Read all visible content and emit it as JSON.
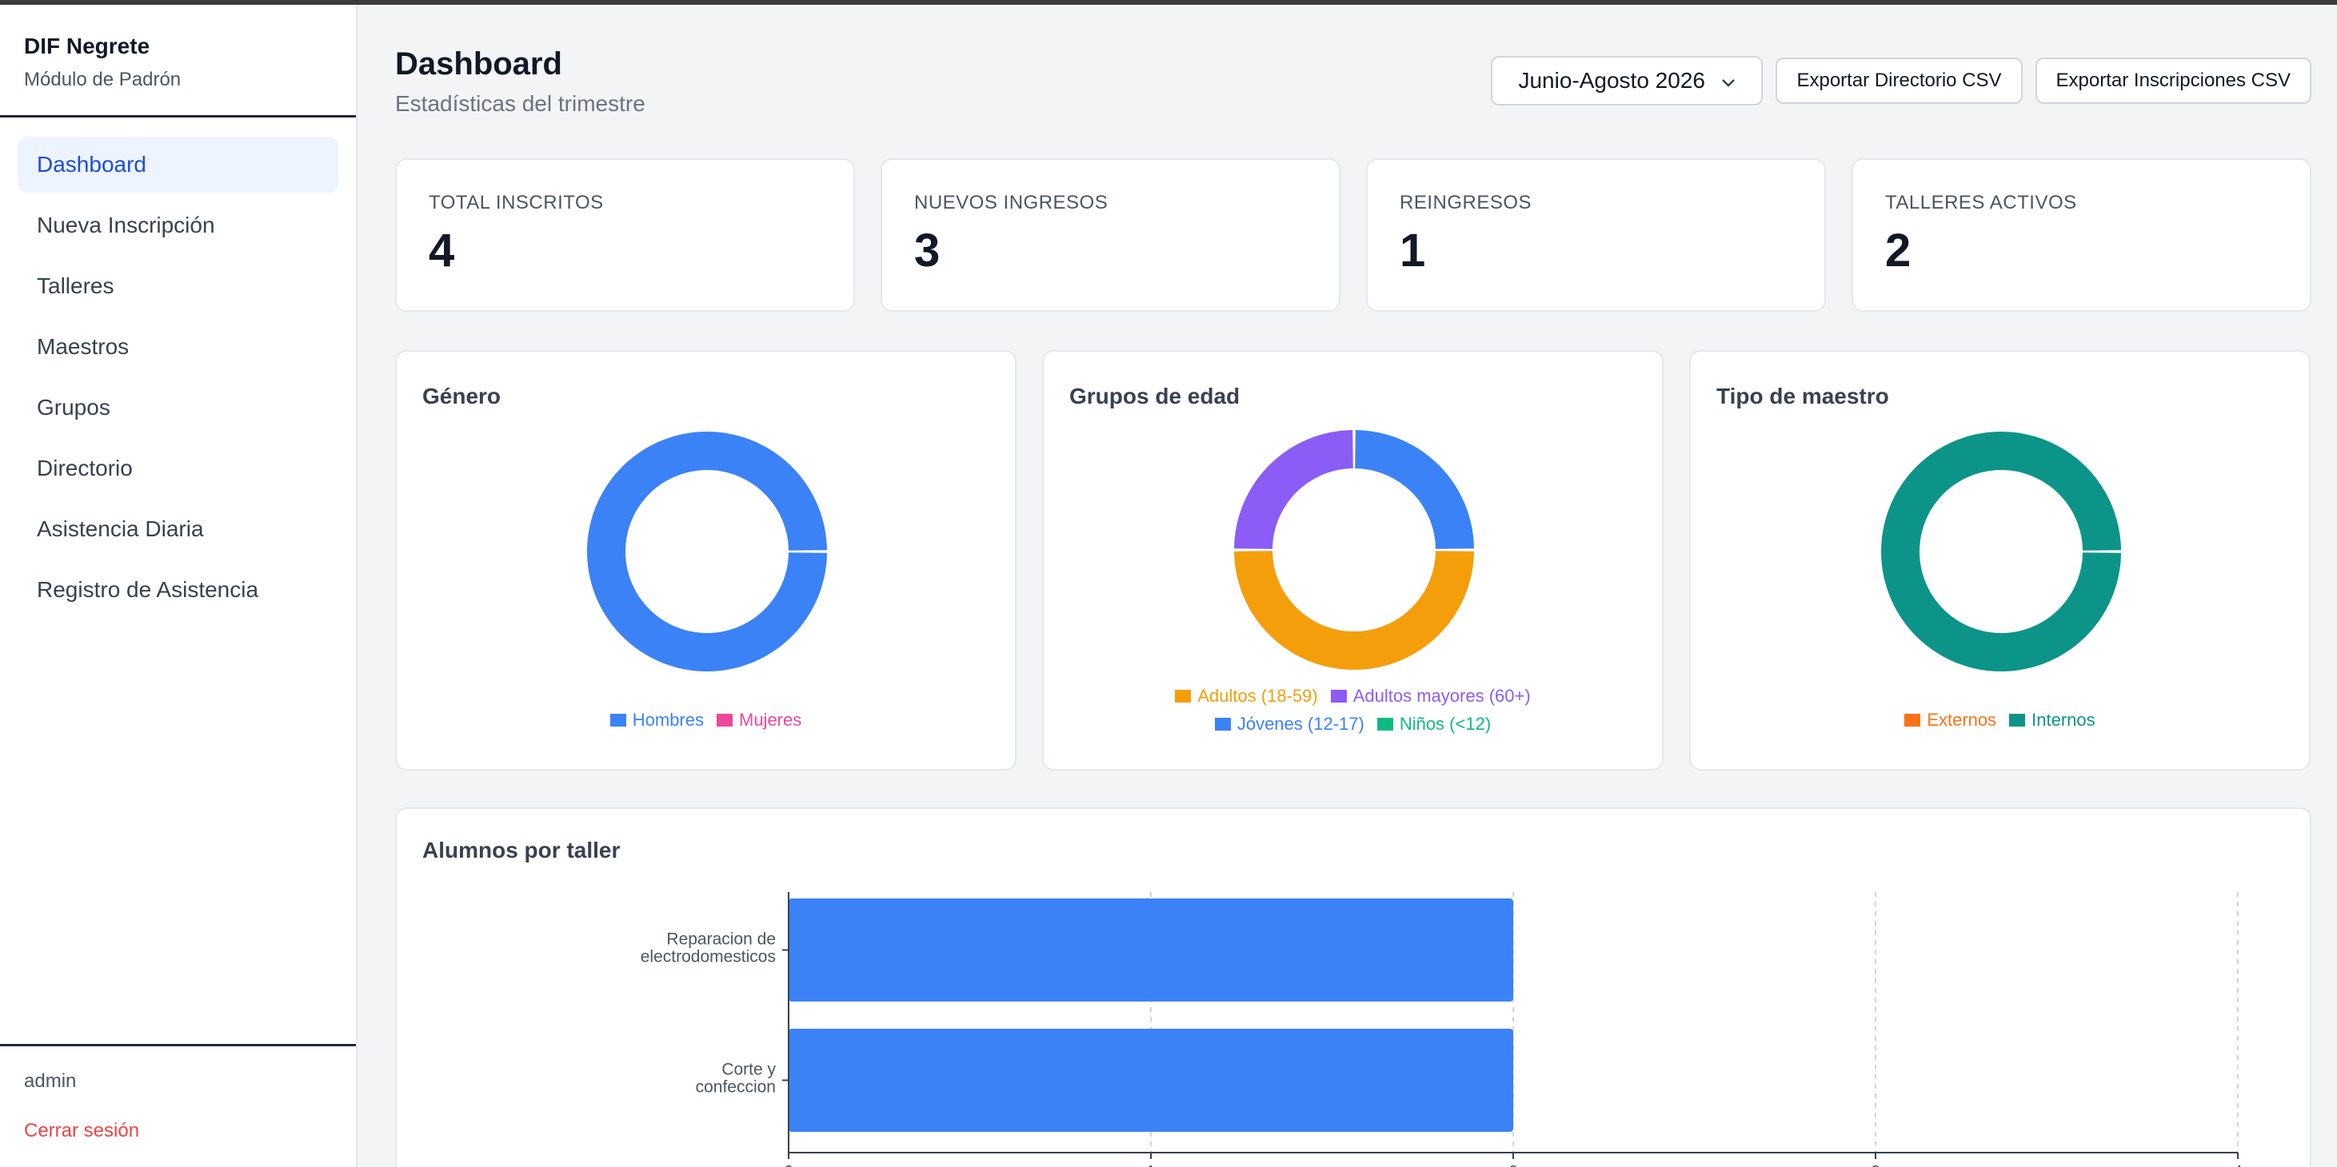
{
  "sidebar": {
    "brand_title": "DIF Negrete",
    "brand_subtitle": "Módulo de Padrón",
    "items": [
      {
        "label": "Dashboard",
        "active": true
      },
      {
        "label": "Nueva Inscripción"
      },
      {
        "label": "Talleres"
      },
      {
        "label": "Maestros"
      },
      {
        "label": "Grupos"
      },
      {
        "label": "Directorio"
      },
      {
        "label": "Asistencia Diaria"
      },
      {
        "label": "Registro de Asistencia"
      }
    ],
    "user": "admin",
    "logout": "Cerrar sesión"
  },
  "header": {
    "title": "Dashboard",
    "subtitle": "Estadísticas del trimestre",
    "period_selected": "Junio-Agosto 2026",
    "export_directory": "Exportar Directorio CSV",
    "export_enrollments": "Exportar Inscripciones CSV"
  },
  "stats": [
    {
      "label": "TOTAL INSCRITOS",
      "value": "4"
    },
    {
      "label": "NUEVOS INGRESOS",
      "value": "3"
    },
    {
      "label": "REINGRESOS",
      "value": "1"
    },
    {
      "label": "TALLERES ACTIVOS",
      "value": "2"
    }
  ],
  "colors": {
    "blue": "#3b82f6",
    "pink": "#ec4899",
    "orange": "#f59e0b",
    "purple": "#8b5cf6",
    "green": "#10b981",
    "teal": "#0d9488",
    "red_orange": "#f97316",
    "active_nav": "#1d4ed8",
    "logout": "#ef4444"
  },
  "chart_data": [
    {
      "type": "pie",
      "title": "Género",
      "labels": [
        "Hombres",
        "Mujeres"
      ],
      "values": [
        4,
        0
      ],
      "colors": [
        "#3b82f6",
        "#ec4899"
      ],
      "legend": "bottom"
    },
    {
      "type": "pie",
      "title": "Grupos de edad",
      "labels": [
        "Adultos (18-59)",
        "Adultos mayores (60+)",
        "Jóvenes (12-17)",
        "Niños (<12)"
      ],
      "values": [
        2,
        1,
        1,
        0
      ],
      "colors": [
        "#f59e0b",
        "#8b5cf6",
        "#3b82f6",
        "#10b981"
      ],
      "legend": "bottom"
    },
    {
      "type": "pie",
      "title": "Tipo de maestro",
      "labels": [
        "Externos",
        "Internos"
      ],
      "values": [
        0,
        4
      ],
      "colors": [
        "#f97316",
        "#0d9488"
      ],
      "legend": "bottom"
    },
    {
      "type": "bar",
      "orientation": "horizontal",
      "title": "Alumnos por taller",
      "categories": [
        [
          "Reparacion de",
          "electrodomesticos"
        ],
        [
          "Corte y",
          "confeccion"
        ]
      ],
      "values": [
        2,
        2
      ],
      "xlim": [
        0,
        4
      ],
      "xticks": [
        "0",
        "1",
        "2",
        "3",
        "4"
      ],
      "color": "#3b82f6",
      "grid": true
    }
  ]
}
